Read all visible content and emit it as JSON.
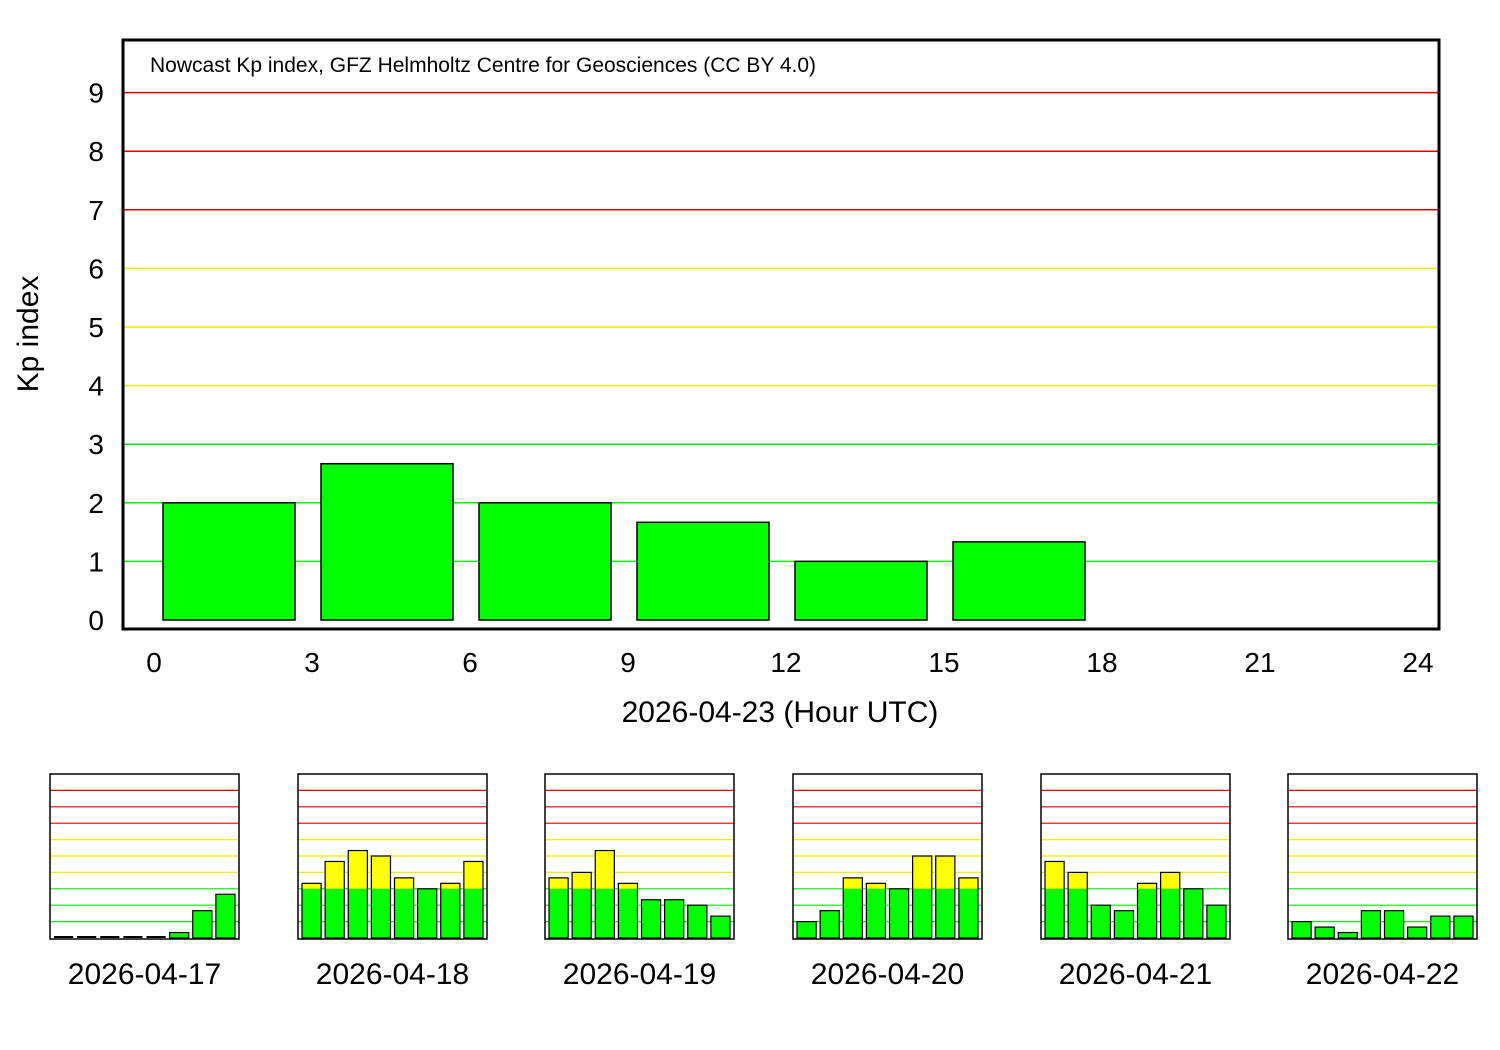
{
  "chart_data": [
    {
      "type": "bar",
      "title": "Nowcast Kp index, GFZ Helmholtz Centre for Geosciences (CC BY 4.0)",
      "xlabel": "2026-04-23 (Hour UTC)",
      "ylabel": "Kp index",
      "xlim": [
        0,
        24
      ],
      "ylim": [
        0,
        9
      ],
      "xticks": [
        "0",
        "3",
        "6",
        "9",
        "12",
        "15",
        "18",
        "21",
        "24"
      ],
      "yticks": [
        "0",
        "1",
        "2",
        "3",
        "4",
        "5",
        "6",
        "7",
        "8",
        "9"
      ],
      "x": [
        0,
        3,
        6,
        9,
        12,
        15
      ],
      "values": [
        2.0,
        2.667,
        2.0,
        1.667,
        1.0,
        1.333
      ],
      "grid": true,
      "gridline_colors": {
        "quiet": "#00ee00",
        "active": "#eeee00",
        "storm": "#dd0000"
      },
      "bar_colors": {
        "quiet": "#00ff00",
        "active": "#ffff00"
      }
    },
    {
      "type": "bar",
      "xlabel": "2026-04-17",
      "ylim": [
        0,
        9
      ],
      "values": [
        0.0,
        0.0,
        0.0,
        0.0,
        0.0,
        0.333,
        1.667,
        2.667
      ]
    },
    {
      "type": "bar",
      "xlabel": "2026-04-18",
      "ylim": [
        0,
        9
      ],
      "values": [
        3.333,
        4.667,
        5.333,
        5.0,
        3.667,
        3.0,
        3.333,
        4.667
      ]
    },
    {
      "type": "bar",
      "xlabel": "2026-04-19",
      "ylim": [
        0,
        9
      ],
      "values": [
        3.667,
        4.0,
        5.333,
        3.333,
        2.333,
        2.333,
        2.0,
        1.333
      ]
    },
    {
      "type": "bar",
      "xlabel": "2026-04-20",
      "ylim": [
        0,
        9
      ],
      "values": [
        1.0,
        1.667,
        3.667,
        3.333,
        3.0,
        5.0,
        5.0,
        3.667
      ]
    },
    {
      "type": "bar",
      "xlabel": "2026-04-21",
      "ylim": [
        0,
        9
      ],
      "values": [
        4.667,
        4.0,
        2.0,
        1.667,
        3.333,
        4.0,
        3.0,
        2.0
      ]
    },
    {
      "type": "bar",
      "xlabel": "2026-04-22",
      "ylim": [
        0,
        9
      ],
      "values": [
        1.0,
        0.667,
        0.333,
        1.667,
        1.667,
        0.667,
        1.333,
        1.333
      ]
    }
  ]
}
